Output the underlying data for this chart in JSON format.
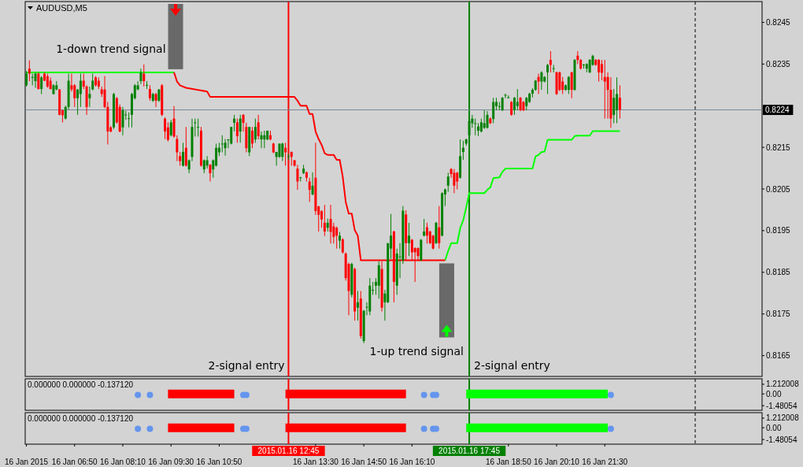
{
  "chart_data": [
    {
      "type": "candlestick",
      "title": "AUDUSD,M5",
      "x": [
        "2015-01-16T05:30",
        "2015-01-16T05:35",
        "2015-01-16T05:40",
        "2015-01-16T05:45",
        "2015-01-16T05:50",
        "2015-01-16T05:55",
        "2015-01-16T06:00",
        "2015-01-16T06:05",
        "2015-01-16T06:10",
        "2015-01-16T06:15",
        "2015-01-16T06:20",
        "2015-01-16T06:25",
        "2015-01-16T06:30",
        "2015-01-16T06:35",
        "2015-01-16T06:40",
        "2015-01-16T06:45",
        "2015-01-16T06:50",
        "2015-01-16T06:55",
        "2015-01-16T07:00",
        "2015-01-16T07:05",
        "2015-01-16T07:10",
        "2015-01-16T07:15",
        "2015-01-16T07:20",
        "2015-01-16T07:25",
        "2015-01-16T07:30",
        "2015-01-16T07:35",
        "2015-01-16T07:40",
        "2015-01-16T07:45",
        "2015-01-16T07:50",
        "2015-01-16T07:55",
        "2015-01-16T08:00",
        "2015-01-16T08:05",
        "2015-01-16T08:10",
        "2015-01-16T08:15",
        "2015-01-16T08:20",
        "2015-01-16T08:25",
        "2015-01-16T08:30",
        "2015-01-16T08:35",
        "2015-01-16T08:40",
        "2015-01-16T08:45",
        "2015-01-16T08:50",
        "2015-01-16T08:55",
        "2015-01-16T09:00",
        "2015-01-16T09:05",
        "2015-01-16T09:10",
        "2015-01-16T09:15",
        "2015-01-16T09:20",
        "2015-01-16T09:25",
        "2015-01-16T09:30",
        "2015-01-16T09:35",
        "2015-01-16T09:40",
        "2015-01-16T09:45",
        "2015-01-16T09:50",
        "2015-01-16T09:55",
        "2015-01-16T10:00",
        "2015-01-16T10:05",
        "2015-01-16T10:10",
        "2015-01-16T10:15",
        "2015-01-16T10:20",
        "2015-01-16T10:25",
        "2015-01-16T10:30",
        "2015-01-16T10:35",
        "2015-01-16T10:40",
        "2015-01-16T10:45",
        "2015-01-16T10:50",
        "2015-01-16T10:55",
        "2015-01-16T11:00",
        "2015-01-16T11:05",
        "2015-01-16T11:10",
        "2015-01-16T11:15",
        "2015-01-16T11:20",
        "2015-01-16T11:25",
        "2015-01-16T11:30",
        "2015-01-16T11:35",
        "2015-01-16T11:40",
        "2015-01-16T11:45",
        "2015-01-16T11:50",
        "2015-01-16T11:55",
        "2015-01-16T12:00",
        "2015-01-16T12:05",
        "2015-01-16T12:10",
        "2015-01-16T12:15",
        "2015-01-16T12:20",
        "2015-01-16T12:25",
        "2015-01-16T12:30",
        "2015-01-16T12:35",
        "2015-01-16T12:40",
        "2015-01-16T12:45",
        "2015-01-16T12:50",
        "2015-01-16T12:55",
        "2015-01-16T13:00",
        "2015-01-16T13:05",
        "2015-01-16T13:10",
        "2015-01-16T13:15",
        "2015-01-16T13:20",
        "2015-01-16T13:25",
        "2015-01-16T13:30",
        "2015-01-16T13:35",
        "2015-01-16T13:40",
        "2015-01-16T13:45",
        "2015-01-16T13:50",
        "2015-01-16T13:55",
        "2015-01-16T14:00",
        "2015-01-16T14:05",
        "2015-01-16T14:10",
        "2015-01-16T14:15",
        "2015-01-16T14:20",
        "2015-01-16T14:25",
        "2015-01-16T14:30",
        "2015-01-16T14:35",
        "2015-01-16T14:40",
        "2015-01-16T14:45",
        "2015-01-16T14:50",
        "2015-01-16T14:55",
        "2015-01-16T15:00",
        "2015-01-16T15:05",
        "2015-01-16T15:10",
        "2015-01-16T15:15",
        "2015-01-16T15:20",
        "2015-01-16T15:25",
        "2015-01-16T15:30",
        "2015-01-16T15:35",
        "2015-01-16T15:40",
        "2015-01-16T15:45",
        "2015-01-16T15:50",
        "2015-01-16T15:55",
        "2015-01-16T16:00",
        "2015-01-16T16:05",
        "2015-01-16T16:10",
        "2015-01-16T16:15",
        "2015-01-16T16:20",
        "2015-01-16T16:25",
        "2015-01-16T16:30",
        "2015-01-16T16:35",
        "2015-01-16T16:40",
        "2015-01-16T16:45",
        "2015-01-16T16:50",
        "2015-01-16T16:55",
        "2015-01-16T17:00",
        "2015-01-16T17:05",
        "2015-01-16T17:10",
        "2015-01-16T17:15",
        "2015-01-16T17:20",
        "2015-01-16T17:25",
        "2015-01-16T17:30",
        "2015-01-16T17:35",
        "2015-01-16T17:40",
        "2015-01-16T17:45",
        "2015-01-16T17:50",
        "2015-01-16T17:55",
        "2015-01-16T18:00",
        "2015-01-16T18:05",
        "2015-01-16T18:10",
        "2015-01-16T18:15",
        "2015-01-16T18:20",
        "2015-01-16T18:25",
        "2015-01-16T18:30",
        "2015-01-16T18:35",
        "2015-01-16T18:40",
        "2015-01-16T18:45",
        "2015-01-16T18:50",
        "2015-01-16T18:55",
        "2015-01-16T19:00",
        "2015-01-16T19:05",
        "2015-01-16T19:10",
        "2015-01-16T19:15",
        "2015-01-16T19:20",
        "2015-01-16T19:25",
        "2015-01-16T19:30",
        "2015-01-16T19:35",
        "2015-01-16T19:40",
        "2015-01-16T19:45",
        "2015-01-16T19:50",
        "2015-01-16T19:55",
        "2015-01-16T20:00",
        "2015-01-16T20:05",
        "2015-01-16T20:10",
        "2015-01-16T20:15",
        "2015-01-16T20:20",
        "2015-01-16T20:25",
        "2015-01-16T20:30",
        "2015-01-16T20:35",
        "2015-01-16T20:40",
        "2015-01-16T20:45",
        "2015-01-16T20:50",
        "2015-01-16T20:55",
        "2015-01-16T21:00",
        "2015-01-16T21:05",
        "2015-01-16T21:10",
        "2015-01-16T21:15",
        "2015-01-16T21:20",
        "2015-01-16T21:25",
        "2015-01-16T21:30",
        "2015-01-16T21:35",
        "2015-01-16T21:40",
        "2015-01-16T21:45",
        "2015-01-16T21:50",
        "2015-01-16T21:55"
      ],
      "ohlc": [
        [
          0.82299,
          0.82333,
          0.82296,
          0.82327
        ],
        [
          0.82339,
          0.82359,
          0.82309,
          0.82327
        ],
        [
          0.82318,
          0.82327,
          0.82299,
          0.82319
        ],
        [
          0.82309,
          0.8233,
          0.82293,
          0.82327
        ],
        [
          0.82327,
          0.8233,
          0.82289,
          0.8229
        ],
        [
          0.8229,
          0.82321,
          0.82278,
          0.82318
        ],
        [
          0.82327,
          0.8233,
          0.82309,
          0.8231
        ],
        [
          0.82321,
          0.82327,
          0.82293,
          0.82296
        ],
        [
          0.8231,
          0.82318,
          0.82289,
          0.8229
        ],
        [
          0.82278,
          0.82302,
          0.82277,
          0.82299
        ],
        [
          0.82289,
          0.82309,
          0.82287,
          0.82299
        ],
        [
          0.82289,
          0.8229,
          0.82227,
          0.82228
        ],
        [
          0.82239,
          0.8224,
          0.8221,
          0.82227
        ],
        [
          0.82219,
          0.8225,
          0.82217,
          0.82247
        ],
        [
          0.82247,
          0.82327,
          0.82241,
          0.8231
        ],
        [
          0.82299,
          0.82327,
          0.82284,
          0.82289
        ],
        [
          0.82299,
          0.82302,
          0.82247,
          0.82268
        ],
        [
          0.82268,
          0.8229,
          0.82228,
          0.82289
        ],
        [
          0.82278,
          0.82327,
          0.82247,
          0.8231
        ],
        [
          0.8231,
          0.82327,
          0.8229,
          0.82296
        ],
        [
          0.82296,
          0.82299,
          0.82228,
          0.82247
        ],
        [
          0.82268,
          0.82296,
          0.82247,
          0.82278
        ],
        [
          0.82289,
          0.82327,
          0.82287,
          0.8231
        ],
        [
          0.82318,
          0.82321,
          0.82296,
          0.82299
        ],
        [
          0.8231,
          0.82318,
          0.8229,
          0.82296
        ],
        [
          0.82289,
          0.82296,
          0.82271,
          0.82278
        ],
        [
          0.82289,
          0.82321,
          0.82244,
          0.82247
        ],
        [
          0.82247,
          0.82259,
          0.82157,
          0.82188
        ],
        [
          0.82198,
          0.82201,
          0.82186,
          0.82188
        ],
        [
          0.82198,
          0.82281,
          0.82194,
          0.82278
        ],
        [
          0.82268,
          0.82271,
          0.82207,
          0.8221
        ],
        [
          0.82247,
          0.82253,
          0.82186,
          0.82188
        ],
        [
          0.82198,
          0.82247,
          0.82179,
          0.82239
        ],
        [
          0.82228,
          0.82238,
          0.82216,
          0.82229
        ],
        [
          0.82219,
          0.82234,
          0.82198,
          0.8222
        ],
        [
          0.82228,
          0.82281,
          0.82198,
          0.82278
        ],
        [
          0.82268,
          0.82302,
          0.82265,
          0.82299
        ],
        [
          0.82289,
          0.82309,
          0.82287,
          0.82299
        ],
        [
          0.82309,
          0.82339,
          0.82302,
          0.8233
        ],
        [
          0.82327,
          0.82349,
          0.82296,
          0.82309
        ],
        [
          0.82299,
          0.82309,
          0.8229,
          0.823
        ],
        [
          0.8229,
          0.82299,
          0.82262,
          0.82268
        ],
        [
          0.82262,
          0.82281,
          0.82259,
          0.82278
        ],
        [
          0.82278,
          0.82281,
          0.82247,
          0.82262
        ],
        [
          0.82262,
          0.8229,
          0.82259,
          0.82289
        ],
        [
          0.82299,
          0.82302,
          0.82225,
          0.82228
        ],
        [
          0.82219,
          0.82222,
          0.8217,
          0.82188
        ],
        [
          0.82198,
          0.8221,
          0.82164,
          0.82168
        ],
        [
          0.82179,
          0.82216,
          0.82176,
          0.8221
        ],
        [
          0.82219,
          0.82249,
          0.82173,
          0.82176
        ],
        [
          0.8217,
          0.82179,
          0.82117,
          0.82138
        ],
        [
          0.82129,
          0.82139,
          0.82106,
          0.82117
        ],
        [
          0.82106,
          0.82161,
          0.82104,
          0.82139
        ],
        [
          0.82149,
          0.82199,
          0.82104,
          0.82106
        ],
        [
          0.82097,
          0.82121,
          0.82088,
          0.82119
        ],
        [
          0.82127,
          0.82219,
          0.82117,
          0.82199
        ],
        [
          0.82209,
          0.82219,
          0.82176,
          0.8221
        ],
        [
          0.82198,
          0.82219,
          0.82176,
          0.82199
        ],
        [
          0.8219,
          0.82199,
          0.82104,
          0.82106
        ],
        [
          0.82097,
          0.82121,
          0.82088,
          0.82119
        ],
        [
          0.82106,
          0.82129,
          0.82099,
          0.82119
        ],
        [
          0.82108,
          0.8211,
          0.82068,
          0.82088
        ],
        [
          0.82097,
          0.82121,
          0.82077,
          0.82119
        ],
        [
          0.82106,
          0.82159,
          0.82104,
          0.82149
        ],
        [
          0.82138,
          0.82161,
          0.82129,
          0.82149
        ],
        [
          0.82158,
          0.82179,
          0.82138,
          0.82159
        ],
        [
          0.82148,
          0.8217,
          0.8213,
          0.82161
        ],
        [
          0.82168,
          0.8217,
          0.82148,
          0.82169
        ],
        [
          0.82159,
          0.82199,
          0.82157,
          0.82199
        ],
        [
          0.82209,
          0.82228,
          0.82188,
          0.82219
        ],
        [
          0.8221,
          0.82219,
          0.82161,
          0.82177
        ],
        [
          0.82188,
          0.82228,
          0.82161,
          0.82219
        ],
        [
          0.82228,
          0.8223,
          0.82188,
          0.82209
        ],
        [
          0.82199,
          0.82209,
          0.82138,
          0.82148
        ],
        [
          0.82138,
          0.82199,
          0.82129,
          0.82199
        ],
        [
          0.8219,
          0.82199,
          0.82148,
          0.82159
        ],
        [
          0.82169,
          0.82219,
          0.82161,
          0.82199
        ],
        [
          0.8221,
          0.82228,
          0.82169,
          0.82177
        ],
        [
          0.82169,
          0.82188,
          0.82148,
          0.82179
        ],
        [
          0.82169,
          0.8219,
          0.82148,
          0.82179
        ],
        [
          0.82169,
          0.8219,
          0.82167,
          0.8219
        ],
        [
          0.82179,
          0.8219,
          0.82167,
          0.82169
        ],
        [
          0.82159,
          0.82161,
          0.82136,
          0.82138
        ],
        [
          0.82127,
          0.82139,
          0.82106,
          0.82139
        ],
        [
          0.82127,
          0.82159,
          0.82125,
          0.82159
        ],
        [
          0.82127,
          0.82161,
          0.82117,
          0.82159
        ],
        [
          0.82149,
          0.82161,
          0.82106,
          0.82138
        ],
        [
          0.82128,
          0.82135,
          0.8212,
          0.82129
        ],
        [
          0.82139,
          0.8214,
          0.82106,
          0.82127
        ],
        [
          0.82119,
          0.8212,
          0.82104,
          0.82106
        ],
        [
          0.82099,
          0.82108,
          0.82048,
          0.82068
        ],
        [
          0.82077,
          0.82079,
          0.82068,
          0.82078
        ],
        [
          0.82088,
          0.82108,
          0.82086,
          0.82099
        ],
        [
          0.8209,
          0.82092,
          0.82068,
          0.82077
        ],
        [
          0.82068,
          0.82077,
          0.82019,
          0.82048
        ],
        [
          0.82037,
          0.8209,
          0.82035,
          0.82058
        ],
        [
          0.82077,
          0.82161,
          0.81988,
          0.81997
        ],
        [
          0.82008,
          0.8201,
          0.81948,
          0.81988
        ],
        [
          0.81997,
          0.81999,
          0.81957,
          0.81977
        ],
        [
          0.81969,
          0.82012,
          0.81937,
          0.81948
        ],
        [
          0.81957,
          0.81979,
          0.81948,
          0.81969
        ],
        [
          0.81978,
          0.82012,
          0.81919,
          0.81947
        ],
        [
          0.8196,
          0.81969,
          0.81919,
          0.81935
        ],
        [
          0.81957,
          0.8196,
          0.81907,
          0.81938
        ],
        [
          0.81926,
          0.81947,
          0.81907,
          0.81938
        ],
        [
          0.81929,
          0.81932,
          0.81895,
          0.81898
        ],
        [
          0.81895,
          0.81898,
          0.8183,
          0.81836
        ],
        [
          0.8187,
          0.81873,
          0.81747,
          0.81805
        ],
        [
          0.81796,
          0.81873,
          0.8179,
          0.8187
        ],
        [
          0.81858,
          0.81861,
          0.81734,
          0.81756
        ],
        [
          0.81765,
          0.81805,
          0.81734,
          0.81778
        ],
        [
          0.81787,
          0.81805,
          0.81691,
          0.81697
        ],
        [
          0.81685,
          0.81759,
          0.8168,
          0.81758
        ],
        [
          0.81766,
          0.81778,
          0.81747,
          0.81767
        ],
        [
          0.81756,
          0.81836,
          0.81747,
          0.81818
        ],
        [
          0.81807,
          0.81827,
          0.81796,
          0.81808
        ],
        [
          0.81818,
          0.81836,
          0.81796,
          0.81827
        ],
        [
          0.81818,
          0.81876,
          0.81787,
          0.81867
        ],
        [
          0.81858,
          0.81876,
          0.81756,
          0.81765
        ],
        [
          0.81778,
          0.81808,
          0.81734,
          0.81799
        ],
        [
          0.81778,
          0.8192,
          0.81776,
          0.8192
        ],
        [
          0.81907,
          0.8199,
          0.81882,
          0.81938
        ],
        [
          0.81948,
          0.8195,
          0.81778,
          0.81827
        ],
        [
          0.81818,
          0.81907,
          0.81796,
          0.81895
        ],
        [
          0.81887,
          0.8192,
          0.81836,
          0.81888
        ],
        [
          0.81879,
          0.82009,
          0.8187,
          0.81998
        ],
        [
          0.81989,
          0.81999,
          0.81879,
          0.8192
        ],
        [
          0.8192,
          0.81969,
          0.81889,
          0.81938
        ],
        [
          0.81928,
          0.8193,
          0.81879,
          0.81898
        ],
        [
          0.81908,
          0.8191,
          0.81827,
          0.81898
        ],
        [
          0.81908,
          0.8191,
          0.81879,
          0.81889
        ],
        [
          0.81879,
          0.8193,
          0.81877,
          0.81928
        ],
        [
          0.81938,
          0.81978,
          0.81936,
          0.81948
        ],
        [
          0.81958,
          0.81969,
          0.81919,
          0.81938
        ],
        [
          0.81948,
          0.8195,
          0.81918,
          0.8192
        ],
        [
          0.81938,
          0.8194,
          0.81905,
          0.81907
        ],
        [
          0.8192,
          0.81971,
          0.81918,
          0.81969
        ],
        [
          0.81958,
          0.82009,
          0.81907,
          0.8192
        ],
        [
          0.81938,
          0.82042,
          0.81936,
          0.8204
        ],
        [
          0.82037,
          0.82051,
          0.82009,
          0.82049
        ],
        [
          0.82058,
          0.82089,
          0.82043,
          0.8208
        ],
        [
          0.82098,
          0.821,
          0.82077,
          0.82086
        ],
        [
          0.82089,
          0.82098,
          0.8204,
          0.82058
        ],
        [
          0.82089,
          0.82091,
          0.82049,
          0.82068
        ],
        [
          0.82077,
          0.82169,
          0.82075,
          0.82129
        ],
        [
          0.82139,
          0.82166,
          0.8212,
          0.82149
        ],
        [
          0.82159,
          0.82171,
          0.82154,
          0.82169
        ],
        [
          0.82179,
          0.82222,
          0.8217,
          0.82213
        ],
        [
          0.82208,
          0.82228,
          0.82197,
          0.82219
        ],
        [
          0.82207,
          0.82219,
          0.82179,
          0.82208
        ],
        [
          0.8219,
          0.82208,
          0.82177,
          0.822
        ],
        [
          0.82188,
          0.82219,
          0.82186,
          0.8221
        ],
        [
          0.82197,
          0.82239,
          0.82194,
          0.82208
        ],
        [
          0.82197,
          0.82237,
          0.82195,
          0.82228
        ],
        [
          0.82219,
          0.82222,
          0.82206,
          0.82208
        ],
        [
          0.82218,
          0.82269,
          0.82208,
          0.82259
        ],
        [
          0.82249,
          0.82269,
          0.82239,
          0.82259
        ],
        [
          0.82248,
          0.82259,
          0.82239,
          0.82249
        ],
        [
          0.82239,
          0.82271,
          0.82237,
          0.82269
        ],
        [
          0.82275,
          0.82279,
          0.82268,
          0.82276
        ],
        [
          0.82269,
          0.82275,
          0.82268,
          0.8227
        ],
        [
          0.82259,
          0.82261,
          0.82226,
          0.82228
        ],
        [
          0.82239,
          0.82271,
          0.82228,
          0.82269
        ],
        [
          0.82249,
          0.8229,
          0.82239,
          0.82259
        ],
        [
          0.82269,
          0.82271,
          0.82237,
          0.82239
        ],
        [
          0.82259,
          0.82261,
          0.82237,
          0.82239
        ],
        [
          0.82249,
          0.82271,
          0.82239,
          0.82269
        ],
        [
          0.82259,
          0.82281,
          0.82257,
          0.82279
        ],
        [
          0.82279,
          0.82292,
          0.8227,
          0.82288
        ],
        [
          0.82288,
          0.82312,
          0.82286,
          0.8231
        ],
        [
          0.82319,
          0.82327,
          0.82278,
          0.82308
        ],
        [
          0.82308,
          0.82333,
          0.82288,
          0.8233
        ],
        [
          0.82308,
          0.82321,
          0.82306,
          0.82319
        ],
        [
          0.8233,
          0.8235,
          0.82278,
          0.82348
        ],
        [
          0.8236,
          0.82381,
          0.8233,
          0.82348
        ],
        [
          0.82339,
          0.82348,
          0.8233,
          0.8234
        ],
        [
          0.8233,
          0.82332,
          0.82276,
          0.82278
        ],
        [
          0.8233,
          0.82332,
          0.82285,
          0.82288
        ],
        [
          0.82308,
          0.82319,
          0.82278,
          0.82288
        ],
        [
          0.82288,
          0.82301,
          0.82286,
          0.82299
        ],
        [
          0.82288,
          0.82321,
          0.82278,
          0.82319
        ],
        [
          0.8233,
          0.82332,
          0.82268,
          0.82288
        ],
        [
          0.82288,
          0.82362,
          0.82286,
          0.8236
        ],
        [
          0.8237,
          0.82381,
          0.8235,
          0.8236
        ],
        [
          0.8236,
          0.82362,
          0.82337,
          0.82339
        ],
        [
          0.82348,
          0.8235,
          0.82339,
          0.82349
        ],
        [
          0.82339,
          0.82352,
          0.8233,
          0.8235
        ],
        [
          0.8233,
          0.82362,
          0.82328,
          0.8236
        ],
        [
          0.82348,
          0.82372,
          0.82346,
          0.8237
        ],
        [
          0.8236,
          0.82362,
          0.82346,
          0.82348
        ],
        [
          0.8236,
          0.82362,
          0.82308,
          0.8233
        ],
        [
          0.8235,
          0.8236,
          0.82311,
          0.82329
        ],
        [
          0.82319,
          0.8236,
          0.82219,
          0.82308
        ],
        [
          0.82319,
          0.8233,
          0.82219,
          0.82288
        ],
        [
          0.82288,
          0.82318,
          0.82197,
          0.82219
        ],
        [
          0.82228,
          0.8229,
          0.82208,
          0.82269
        ],
        [
          0.82239,
          0.82318,
          0.82208,
          0.82278
        ],
        [
          0.82269,
          0.82299,
          0.82219,
          0.8224
        ]
      ],
      "colors": [
        "#008000",
        "#ff0000",
        "#008000",
        "#008000",
        "#ff0000",
        "#008000",
        "#ff0000",
        "#ff0000",
        "#ff0000",
        "#008000",
        "#008000",
        "#ff0000",
        "#ff0000",
        "#008000",
        "#008000",
        "#ff0000",
        "#ff0000",
        "#008000",
        "#008000",
        "#ff0000",
        "#ff0000",
        "#008000",
        "#008000",
        "#ff0000",
        "#ff0000",
        "#ff0000",
        "#ff0000",
        "#ff0000",
        "#ff0000",
        "#008000",
        "#ff0000",
        "#ff0000",
        "#008000",
        "#008000",
        "#008000",
        "#008000",
        "#008000",
        "#008000",
        "#008000",
        "#ff0000",
        "#008000",
        "#ff0000",
        "#008000",
        "#ff0000",
        "#008000",
        "#ff0000",
        "#ff0000",
        "#ff0000",
        "#008000",
        "#ff0000",
        "#ff0000",
        "#ff0000",
        "#008000",
        "#ff0000",
        "#008000",
        "#008000",
        "#008000",
        "#008000",
        "#ff0000",
        "#008000",
        "#008000",
        "#ff0000",
        "#008000",
        "#008000",
        "#008000",
        "#008000",
        "#008000",
        "#008000",
        "#008000",
        "#008000",
        "#ff0000",
        "#008000",
        "#ff0000",
        "#ff0000",
        "#008000",
        "#ff0000",
        "#008000",
        "#ff0000",
        "#008000",
        "#008000",
        "#008000",
        "#ff0000",
        "#ff0000",
        "#008000",
        "#008000",
        "#008000",
        "#ff0000",
        "#008000",
        "#ff0000",
        "#ff0000",
        "#ff0000",
        "#008000",
        "#008000",
        "#ff0000",
        "#ff0000",
        "#008000",
        "#ff0000",
        "#ff0000",
        "#ff0000",
        "#ff0000",
        "#008000",
        "#ff0000",
        "#ff0000",
        "#ff0000",
        "#008000",
        "#ff0000",
        "#ff0000",
        "#ff0000",
        "#008000",
        "#ff0000",
        "#008000",
        "#ff0000",
        "#008000",
        "#008000",
        "#008000",
        "#008000",
        "#008000",
        "#008000",
        "#ff0000",
        "#008000",
        "#008000",
        "#008000",
        "#ff0000",
        "#008000",
        "#008000",
        "#008000",
        "#ff0000",
        "#008000",
        "#ff0000",
        "#ff0000",
        "#ff0000",
        "#008000",
        "#008000",
        "#ff0000",
        "#ff0000",
        "#ff0000",
        "#008000",
        "#ff0000",
        "#008000",
        "#008000",
        "#008000",
        "#ff0000",
        "#ff0000",
        "#ff0000",
        "#008000",
        "#008000",
        "#008000",
        "#008000",
        "#008000",
        "#008000",
        "#008000",
        "#008000",
        "#008000",
        "#008000",
        "#ff0000",
        "#008000",
        "#008000",
        "#008000",
        "#008000",
        "#008000",
        "#008000",
        "#ff0000",
        "#008000",
        "#008000",
        "#ff0000",
        "#ff0000",
        "#008000",
        "#008000",
        "#008000",
        "#008000",
        "#ff0000",
        "#008000",
        "#008000",
        "#008000",
        "#ff0000",
        "#008000",
        "#ff0000",
        "#ff0000",
        "#ff0000",
        "#008000",
        "#008000",
        "#ff0000",
        "#008000",
        "#ff0000",
        "#ff0000",
        "#008000",
        "#008000",
        "#008000",
        "#008000",
        "#ff0000",
        "#ff0000",
        "#ff0000",
        "#ff0000",
        "#ff0000",
        "#ff0000",
        "#008000",
        "#008000",
        "#ff0000"
      ],
      "series": [
        {
          "type": "line",
          "color": "#00ff00",
          "x": [
            "2015-01-16T05:30",
            "2015-01-16T09:35",
            "2015-01-16T09:40",
            "2015-01-16T17:05",
            "2015-01-16T17:10",
            "2015-01-16T17:15",
            "2015-01-16T17:25",
            "2015-01-16T17:30",
            "2015-01-16T17:35",
            "2015-01-16T17:40",
            "2015-01-16T17:45",
            "2015-01-16T18:10",
            "2015-01-16T18:15",
            "2015-01-16T18:20",
            "2015-01-16T18:25",
            "2015-01-16T18:35",
            "2015-01-16T18:40",
            "2015-01-16T18:45",
            "2015-01-16T19:30",
            "2015-01-16T19:35",
            "2015-01-16T19:40",
            "2015-01-16T19:45",
            "2015-01-16T19:50",
            "2015-01-16T19:55",
            "2015-01-16T20:35",
            "2015-01-16T20:40",
            "2015-01-16T20:45",
            "2015-01-16T21:05",
            "2015-01-16T21:10",
            "2015-01-16T21:55"
          ],
          "values": [
            0.8233,
            0.8233,
            null,
            0.81879,
            0.81901,
            0.8192,
            0.8192,
            0.81956,
            0.81975,
            0.82006,
            0.8204,
            0.8204,
            0.82048,
            0.82054,
            0.82076,
            0.82078,
            0.82091,
            0.82099,
            0.82099,
            0.82128,
            0.82132,
            0.82139,
            0.8214,
            0.82168,
            0.82168,
            0.82177,
            0.82178,
            0.82178,
            0.82189,
            0.82189
          ]
        },
        {
          "type": "line",
          "color": "#ff0000",
          "x": [
            "2015-01-16T09:35",
            "2015-01-16T09:40",
            "2015-01-16T09:45",
            "2015-01-16T09:55",
            "2015-01-16T10:30",
            "2015-01-16T10:35",
            "2015-01-16T12:55",
            "2015-01-16T13:00",
            "2015-01-16T13:05",
            "2015-01-16T13:15",
            "2015-01-16T13:20",
            "2015-01-16T13:25",
            "2015-01-16T13:30",
            "2015-01-16T13:35",
            "2015-01-16T13:40",
            "2015-01-16T13:45",
            "2015-01-16T13:50",
            "2015-01-16T14:00",
            "2015-01-16T14:05",
            "2015-01-16T14:10",
            "2015-01-16T14:15",
            "2015-01-16T14:20",
            "2015-01-16T14:25",
            "2015-01-16T14:30",
            "2015-01-16T14:35",
            "2015-01-16T14:40",
            "2015-01-16T14:45",
            "2015-01-16T17:05"
          ],
          "values": [
            0.8233,
            0.82308,
            0.82299,
            0.82293,
            0.82284,
            0.82271,
            0.82271,
            0.82262,
            0.8225,
            0.8225,
            0.8223,
            0.8223,
            0.82188,
            0.8217,
            0.82156,
            0.82136,
            0.82132,
            0.82132,
            0.8212,
            0.8212,
            0.8208,
            0.82019,
            0.81991,
            0.81991,
            0.81951,
            0.81938,
            0.81879,
            0.81879
          ]
        }
      ],
      "xlim": [
        "2015-01-16T05:28",
        "2015-01-17T01:51"
      ],
      "ylim": [
        0.816,
        0.825
      ],
      "yticks": [
        0.8165,
        0.8175,
        0.8185,
        0.8195,
        0.8205,
        0.8215,
        0.8235,
        0.8245
      ],
      "tick_labels": "y",
      "ref_lines": [
        {
          "axis": "x",
          "value": "2015-01-16T12:45",
          "label": "2-signal entry",
          "color": "#ff0000"
        },
        {
          "axis": "x",
          "value": "2015-01-16T17:45",
          "label": "2-signal entry",
          "color": "#008000"
        },
        {
          "axis": "x",
          "value": "2015-01-17T00:00",
          "color": "#000000",
          "line_style": "dashed"
        },
        {
          "axis": "y",
          "value": 0.8224,
          "label": "0.8224",
          "color": "#778899"
        }
      ],
      "annotations": [
        "1-down trend signal",
        "1-up trend signal"
      ]
    },
    {
      "type": "line",
      "title": "0.000000 0.000000 -0.137120",
      "series": [
        {
          "color": "#ff0000",
          "x": [
            "2015-01-16T09:25",
            "2015-01-16T11:15",
            "2015-01-16T11:20",
            "2015-01-16T12:40",
            "2015-01-16T16:00"
          ],
          "values": [
            0,
            0,
            null,
            0,
            0
          ]
        },
        {
          "color": "#00ff00",
          "x": [
            "2015-01-16T17:40",
            "2015-01-16T21:35"
          ],
          "values": [
            0,
            0
          ]
        },
        {
          "type": "scatter",
          "marker": "circle",
          "color": "#6495ed",
          "x": [
            "2015-01-16T08:35",
            "2015-01-16T08:55",
            "2015-01-16T11:30",
            "2015-01-16T11:35",
            "2015-01-16T16:30",
            "2015-01-16T16:45",
            "2015-01-16T16:50",
            "2015-01-16T21:40"
          ],
          "values": [
            -0.13712,
            -0.13712,
            -0.13712,
            -0.13712,
            -0.13712,
            -0.13712,
            -0.13712,
            -0.13712
          ]
        }
      ],
      "xlim": [
        "2015-01-16T05:28",
        "2015-01-17T01:51"
      ],
      "ylim": [
        -2.06,
        1.9
      ],
      "yticks": [
        1.212008,
        {
          "value": 0,
          "label": "0.00"
        },
        -1.48054
      ],
      "tick_labels": "y",
      "ref_lines": [
        {
          "axis": "x",
          "value": "2015-01-16T12:45",
          "color": "#ff0000"
        },
        {
          "axis": "x",
          "value": "2015-01-16T17:45",
          "color": "#008000"
        },
        {
          "axis": "x",
          "value": "2015-01-17T00:00",
          "color": "#000000",
          "line_style": "dashed"
        }
      ]
    },
    {
      "type": "line",
      "title": "0.000000 0.000000 -0.137120",
      "series": [
        {
          "color": "#ff0000",
          "x": [
            "2015-01-16T09:25",
            "2015-01-16T11:15",
            "2015-01-16T11:20",
            "2015-01-16T12:40",
            "2015-01-16T16:00"
          ],
          "values": [
            0,
            0,
            null,
            0,
            0
          ]
        },
        {
          "color": "#00ff00",
          "x": [
            "2015-01-16T17:40",
            "2015-01-16T21:35"
          ],
          "values": [
            0,
            0
          ]
        },
        {
          "type": "scatter",
          "marker": "circle",
          "color": "#6495ed",
          "x": [
            "2015-01-16T08:35",
            "2015-01-16T08:55",
            "2015-01-16T11:30",
            "2015-01-16T11:35",
            "2015-01-16T16:30",
            "2015-01-16T16:45",
            "2015-01-16T16:50",
            "2015-01-16T21:40"
          ],
          "values": [
            -0.13712,
            -0.13712,
            -0.13712,
            -0.13712,
            -0.13712,
            -0.13712,
            -0.13712,
            -0.13712
          ]
        }
      ],
      "xlim": [
        "2015-01-16T05:28",
        "2015-01-17T01:51"
      ],
      "ylim": [
        -2.06,
        1.9
      ],
      "yticks": [
        1.212008,
        {
          "value": 0,
          "label": "0.00"
        },
        -1.48054
      ],
      "xticks": [
        {
          "value": "2015-01-16T05:30",
          "label": "16 Jan 2015"
        },
        {
          "value": "2015-01-16T06:50",
          "label": "16 Jan 06:50"
        },
        {
          "value": "2015-01-16T08:10",
          "label": "16 Jan 08:10"
        },
        {
          "value": "2015-01-16T09:30",
          "label": "16 Jan 09:30"
        },
        {
          "value": "2015-01-16T10:50",
          "label": "16 Jan 10:50"
        },
        {
          "value": "2015-01-16T13:30",
          "label": "16 Jan 13:30"
        },
        {
          "value": "2015-01-16T14:50",
          "label": "16 Jan 14:50"
        },
        {
          "value": "2015-01-16T16:10",
          "label": "16 Jan 16:10"
        },
        {
          "value": "2015-01-16T18:50",
          "label": "16 Jan 18:50"
        },
        {
          "value": "2015-01-16T20:10",
          "label": "16 Jan 20:10"
        },
        {
          "value": "2015-01-16T21:30",
          "label": "16 Jan 21:30"
        }
      ],
      "ref_lines": [
        {
          "axis": "x",
          "value": "2015-01-16T12:45",
          "label": "2015.01.16 12:45",
          "color": "#ff0000"
        },
        {
          "axis": "x",
          "value": "2015-01-16T17:45",
          "label": "2015.01.16 17:45",
          "color": "#008000"
        },
        {
          "axis": "x",
          "value": "2015-01-17T00:00",
          "color": "#000000",
          "line_style": "dashed"
        }
      ]
    }
  ]
}
